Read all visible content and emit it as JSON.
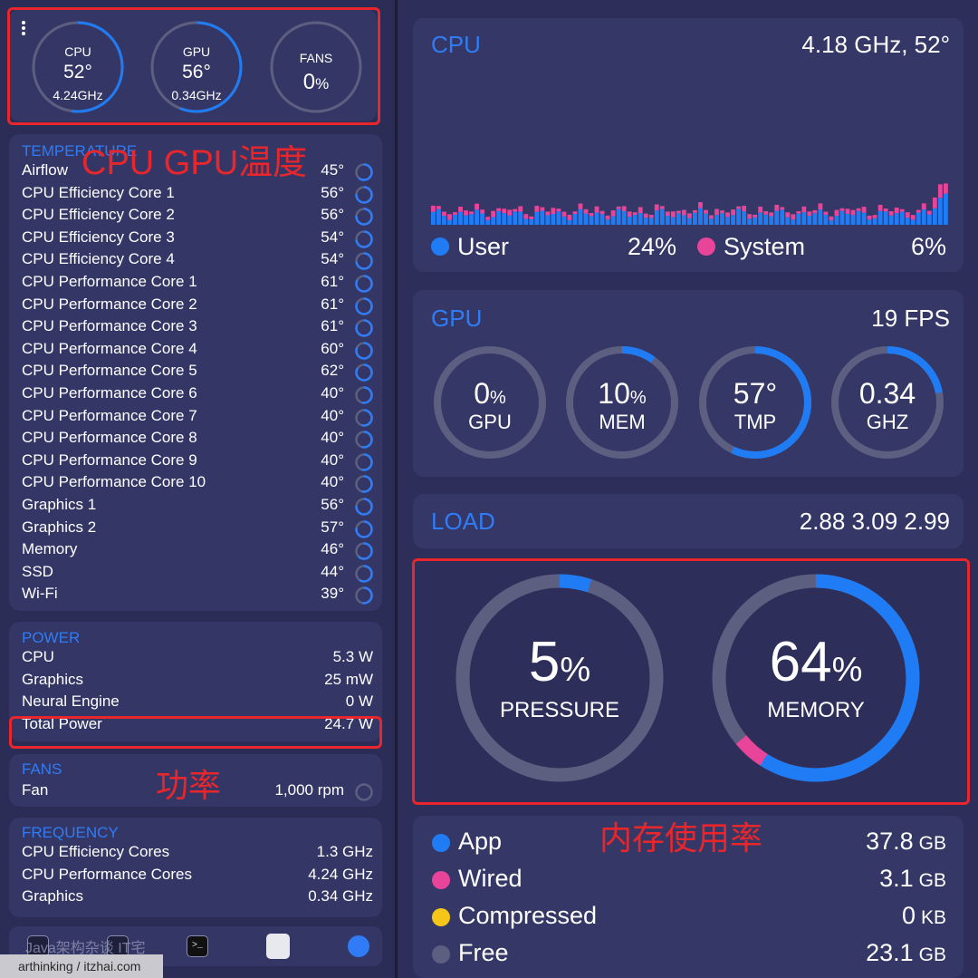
{
  "top_gauges": [
    {
      "label": "CPU",
      "value": "52°",
      "sub": "4.24GHz",
      "fraction": 0.52
    },
    {
      "label": "GPU",
      "value": "56°",
      "sub": "0.34GHz",
      "fraction": 0.56
    },
    {
      "label": "FANS",
      "value": "0",
      "unit": "%",
      "fraction": 0
    }
  ],
  "temperature": {
    "title": "TEMPERATURE",
    "items": [
      {
        "label": "Airflow",
        "value": "45°"
      },
      {
        "label": "CPU Efficiency Core 1",
        "value": "56°"
      },
      {
        "label": "CPU Efficiency Core 2",
        "value": "56°"
      },
      {
        "label": "CPU Efficiency Core 3",
        "value": "54°"
      },
      {
        "label": "CPU Efficiency Core 4",
        "value": "54°"
      },
      {
        "label": "CPU Performance Core 1",
        "value": "61°"
      },
      {
        "label": "CPU Performance Core 2",
        "value": "61°"
      },
      {
        "label": "CPU Performance Core 3",
        "value": "61°"
      },
      {
        "label": "CPU Performance Core 4",
        "value": "60°"
      },
      {
        "label": "CPU Performance Core 5",
        "value": "62°"
      },
      {
        "label": "CPU Performance Core 6",
        "value": "40°"
      },
      {
        "label": "CPU Performance Core 7",
        "value": "40°"
      },
      {
        "label": "CPU Performance Core 8",
        "value": "40°"
      },
      {
        "label": "CPU Performance Core 9",
        "value": "40°"
      },
      {
        "label": "CPU Performance Core 10",
        "value": "40°"
      },
      {
        "label": "Graphics 1",
        "value": "56°"
      },
      {
        "label": "Graphics 2",
        "value": "57°"
      },
      {
        "label": "Memory",
        "value": "46°"
      },
      {
        "label": "SSD",
        "value": "44°"
      },
      {
        "label": "Wi-Fi",
        "value": "39°"
      }
    ]
  },
  "power": {
    "title": "POWER",
    "items": [
      {
        "label": "CPU",
        "value": "5.3 W"
      },
      {
        "label": "Graphics",
        "value": "25 mW"
      },
      {
        "label": "Neural Engine",
        "value": "0 W"
      },
      {
        "label": "Total Power",
        "value": "24.7 W"
      }
    ]
  },
  "fans": {
    "title": "FANS",
    "items": [
      {
        "label": "Fan",
        "value": "1,000 rpm"
      }
    ]
  },
  "frequency": {
    "title": "FREQUENCY",
    "items": [
      {
        "label": "CPU Efficiency Cores",
        "value": "1.3 GHz"
      },
      {
        "label": "CPU Performance Cores",
        "value": "4.24 GHz"
      },
      {
        "label": "Graphics",
        "value": "0.34 GHz"
      }
    ]
  },
  "dock_text": "Java架构杂谈 IT宅",
  "watermark": "arthinking / itzhai.com",
  "cpu_panel": {
    "title": "CPU",
    "value": "4.18 GHz, 52°",
    "user_label": "User",
    "user_value": "24%",
    "system_label": "System",
    "system_value": "6%",
    "user_color": "#1f7cf5",
    "system_color": "#e8449a"
  },
  "gpu_panel": {
    "title": "GPU",
    "fps": "19 FPS",
    "gauges": [
      {
        "value": "0",
        "unit": "%",
        "label": "GPU",
        "fraction": 0
      },
      {
        "value": "10",
        "unit": "%",
        "label": "MEM",
        "fraction": 0.1
      },
      {
        "value": "57°",
        "unit": "",
        "label": "TMP",
        "fraction": 0.57
      },
      {
        "value": "0.34",
        "unit": "",
        "label": "GHZ",
        "fraction": 0.22
      }
    ]
  },
  "load_panel": {
    "title": "LOAD",
    "value": "2.88 3.09 2.99"
  },
  "big_gauges": [
    {
      "value": "5",
      "unit": "%",
      "label": "PRESSURE",
      "fraction": 0.05
    },
    {
      "value": "64",
      "unit": "%",
      "label": "MEMORY",
      "fraction": 0.64,
      "wired_fraction": 0.05
    }
  ],
  "memory_breakdown": [
    {
      "label": "App",
      "value": "37.8",
      "unit": "GB",
      "color": "#1f7cf5"
    },
    {
      "label": "Wired",
      "value": "3.1",
      "unit": "GB",
      "color": "#e8449a"
    },
    {
      "label": "Compressed",
      "value": "0",
      "unit": "KB",
      "color": "#f5c518"
    },
    {
      "label": "Free",
      "value": "23.1",
      "unit": "GB",
      "color": "#5d5f80"
    }
  ],
  "annotations": {
    "temp": "CPU GPU温度",
    "power": "功率",
    "memory": "内存使用率",
    "color": "#e8262b"
  },
  "colors": {
    "accent": "#2f7cf6",
    "track": "#5d5f80",
    "bg": "#2b2d56"
  }
}
